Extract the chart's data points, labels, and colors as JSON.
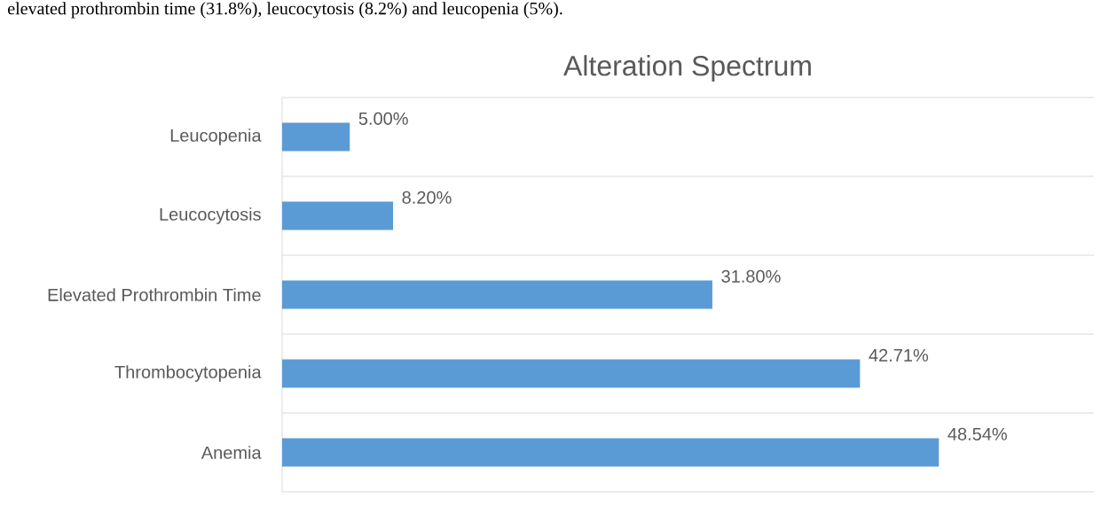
{
  "chart_data": {
    "type": "bar",
    "orientation": "horizontal",
    "title": "Alteration Spectrum",
    "annotations": [
      "elevated prothrombin time (31.8%), leucocytosis (8.2%) and leucopenia (5%)."
    ],
    "categories": [
      "Leucopenia",
      "Leucocytosis",
      "Elevated Prothrombin Time",
      "Thrombocytopenia",
      "Anemia"
    ],
    "values": [
      5.0,
      8.2,
      31.8,
      42.71,
      48.54
    ],
    "value_labels": [
      "5.00%",
      "8.20%",
      "31.80%",
      "42.71%",
      "48.54%"
    ],
    "color": "#5b9bd5",
    "xlim": [
      0,
      60
    ],
    "grid": "y"
  }
}
